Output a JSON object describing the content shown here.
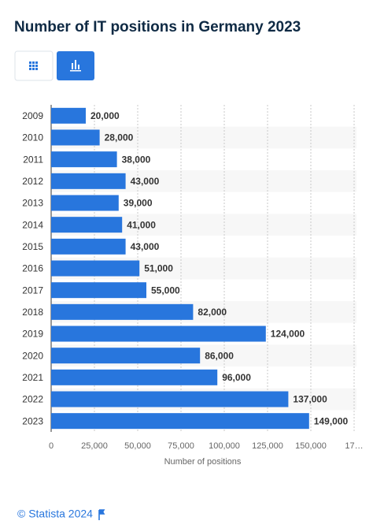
{
  "title": "Number of IT positions in Germany 2023",
  "chart_data": {
    "type": "bar",
    "orientation": "horizontal",
    "categories": [
      "2009",
      "2010",
      "2011",
      "2012",
      "2013",
      "2014",
      "2015",
      "2016",
      "2017",
      "2018",
      "2019",
      "2020",
      "2021",
      "2022",
      "2023"
    ],
    "values": [
      20000,
      28000,
      38000,
      43000,
      39000,
      41000,
      43000,
      51000,
      55000,
      82000,
      124000,
      86000,
      96000,
      137000,
      149000
    ],
    "value_labels": [
      "20,000",
      "28,000",
      "38,000",
      "43,000",
      "39,000",
      "41,000",
      "43,000",
      "51,000",
      "55,000",
      "82,000",
      "124,000",
      "86,000",
      "96,000",
      "137,000",
      "149,000"
    ],
    "color": "#2876dd",
    "xlim": [
      0,
      175000
    ],
    "xticks": [
      0,
      {
        "value": 25000,
        "label": "25,000"
      },
      {
        "value": 50000,
        "label": "50,000"
      },
      {
        "value": 75000,
        "label": "75,000"
      },
      {
        "value": 100000,
        "label": "100,000"
      },
      {
        "value": 125000,
        "label": "125,000"
      },
      {
        "value": 150000,
        "label": "150,000"
      },
      {
        "value": 175000,
        "label": "17…"
      }
    ],
    "xlabel": "Number of positions",
    "grid": true
  },
  "footer": "© Statista 2024"
}
